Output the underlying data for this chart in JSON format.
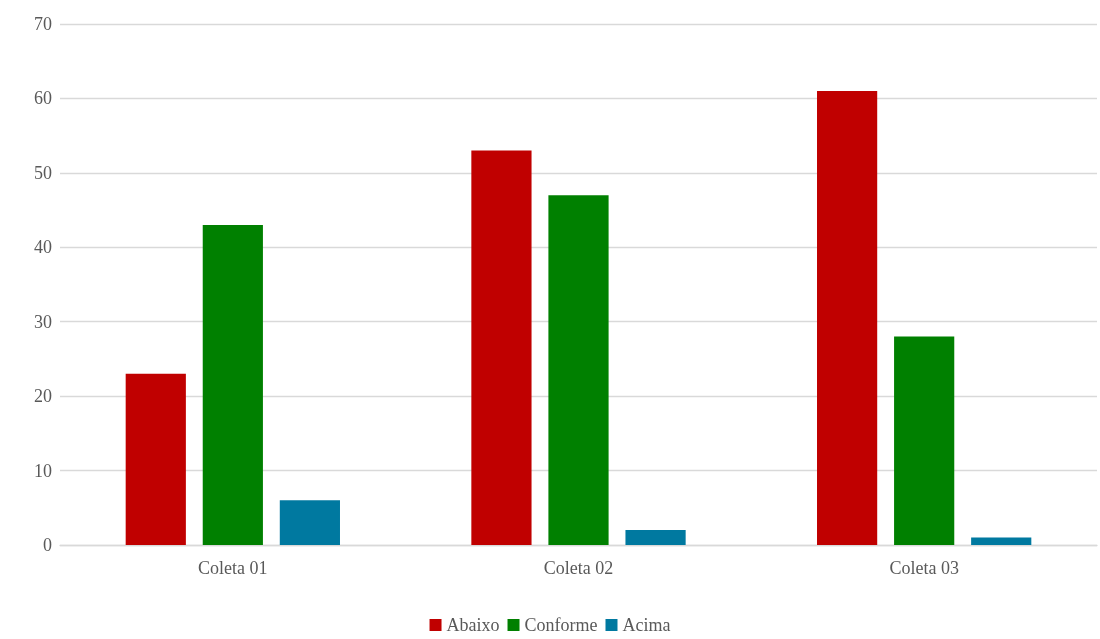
{
  "chart_data": {
    "type": "bar",
    "categories": [
      "Coleta 01",
      "Coleta 02",
      "Coleta 03"
    ],
    "series": [
      {
        "name": "Abaixo",
        "color": "#c00000",
        "values": [
          23,
          53,
          61
        ]
      },
      {
        "name": "Conforme",
        "color": "#008000",
        "values": [
          43,
          47,
          28
        ]
      },
      {
        "name": "Acima",
        "color": "#0079a0",
        "values": [
          6,
          2,
          1
        ]
      }
    ],
    "ylim": [
      0,
      70
    ],
    "yticks": [
      0,
      10,
      20,
      30,
      40,
      50,
      60,
      70
    ],
    "grid": "y",
    "legend": "bottom"
  }
}
